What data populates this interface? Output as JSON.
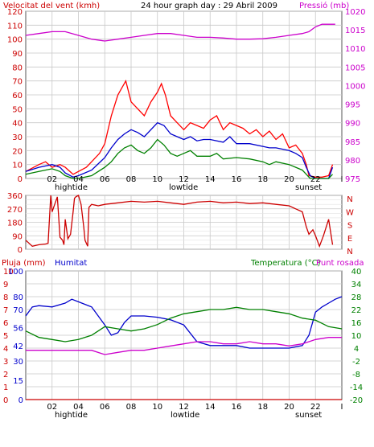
{
  "chart_data": [
    {
      "type": "line",
      "title": "24 hour graph day : 29 Abril 2009",
      "ylabel_left": "Velocitat del vent (kmh)",
      "ylabel_right": "Pressió (mb)",
      "x_ticks": [
        "02",
        "04",
        "06",
        "08",
        "10",
        "12",
        "14",
        "16",
        "18",
        "20",
        "22",
        "I"
      ],
      "x_range": [
        0,
        24
      ],
      "markers": [
        "hightide",
        "lowtide",
        "sunset"
      ],
      "y_left": {
        "range": [
          0,
          120
        ],
        "ticks": [
          "0",
          "10",
          "20",
          "30",
          "40",
          "50",
          "60",
          "70",
          "80",
          "90",
          "100",
          "110",
          "120"
        ]
      },
      "y_right": {
        "range": [
          975,
          1020
        ],
        "ticks": [
          "975",
          "980",
          "985",
          "990",
          "995",
          "1000",
          "1005",
          "1010",
          "1015",
          "1020"
        ]
      },
      "grid": true,
      "series": [
        {
          "color": "#ff0000",
          "axis": "left",
          "x": [
            0,
            1,
            1.5,
            2,
            2.6,
            3.0,
            3.6,
            4,
            4.6,
            5,
            5.6,
            6,
            6.5,
            7,
            7.3,
            7.6,
            8,
            8.5,
            9,
            9.5,
            10,
            10.3,
            10.6,
            11,
            11.5,
            12,
            12.5,
            13,
            13.5,
            14,
            14.5,
            15,
            15.5,
            16,
            16.5,
            17,
            17.5,
            18,
            18.5,
            19,
            19.5,
            20,
            20.5,
            21,
            21.3,
            21.5,
            22,
            22.5,
            23,
            23.3
          ],
          "y": [
            5,
            10,
            12,
            8,
            10,
            8,
            3,
            5,
            8,
            12,
            18,
            25,
            45,
            60,
            65,
            70,
            55,
            50,
            45,
            55,
            62,
            68,
            60,
            45,
            40,
            35,
            40,
            38,
            36,
            42,
            45,
            35,
            40,
            38,
            36,
            32,
            35,
            30,
            34,
            28,
            32,
            22,
            24,
            18,
            10,
            2,
            1,
            1,
            2,
            10
          ]
        },
        {
          "color": "#0000cc",
          "axis": "left",
          "x": [
            0,
            1,
            2,
            2.6,
            3.0,
            3.6,
            4,
            5,
            6,
            6.5,
            7,
            7.5,
            8,
            8.5,
            9,
            9.5,
            10,
            10.5,
            11,
            11.5,
            12,
            12.5,
            13,
            13.5,
            14,
            15,
            15.5,
            16,
            17,
            18,
            18.5,
            19,
            20,
            20.5,
            21,
            21.3,
            21.6,
            22,
            23,
            23.3
          ],
          "y": [
            5,
            8,
            10,
            8,
            4,
            1,
            2,
            6,
            15,
            22,
            28,
            32,
            35,
            33,
            30,
            35,
            40,
            38,
            32,
            30,
            28,
            30,
            27,
            28,
            28,
            26,
            30,
            25,
            25,
            23,
            22,
            22,
            20,
            18,
            15,
            8,
            2,
            0,
            0,
            8
          ]
        },
        {
          "color": "#008000",
          "axis": "left",
          "x": [
            0,
            1,
            2,
            2.6,
            3.0,
            3.6,
            4,
            5,
            6,
            6.5,
            7,
            7.5,
            8,
            8.5,
            9,
            9.5,
            10,
            10.5,
            11,
            11.5,
            12,
            12.5,
            13,
            14,
            14.5,
            15,
            16,
            17,
            18,
            18.5,
            19,
            20,
            20.5,
            21,
            21.3,
            21.6,
            22,
            23,
            23.3
          ],
          "y": [
            3,
            5,
            7,
            5,
            2,
            0,
            0,
            2,
            8,
            12,
            18,
            22,
            24,
            20,
            18,
            22,
            28,
            24,
            18,
            16,
            18,
            20,
            16,
            16,
            18,
            14,
            15,
            14,
            12,
            10,
            12,
            10,
            8,
            6,
            3,
            0,
            0,
            0,
            3
          ]
        },
        {
          "color": "#cc00cc",
          "axis": "right",
          "x": [
            0,
            1,
            2,
            3,
            4,
            5,
            6,
            7,
            8,
            9,
            10,
            11,
            12,
            13,
            14,
            15,
            16,
            17,
            18,
            19,
            20,
            21,
            21.5,
            22,
            22.5,
            23,
            23.5
          ],
          "y": [
            1013.5,
            1014,
            1014.5,
            1014.5,
            1013.5,
            1012.5,
            1012,
            1012.5,
            1013,
            1013.5,
            1014,
            1014,
            1013.5,
            1013,
            1013,
            1012.8,
            1012.5,
            1012.5,
            1012.6,
            1013,
            1013.5,
            1014,
            1014.5,
            1015.8,
            1016.5,
            1016.5,
            1016.5
          ]
        }
      ]
    },
    {
      "type": "line",
      "ylabel_right": "N W S E N",
      "compass": [
        "N",
        "W",
        "S",
        "E",
        "N"
      ],
      "x_range": [
        0,
        24
      ],
      "y_left": {
        "range": [
          0,
          360
        ],
        "ticks": [
          "0",
          "90",
          "180",
          "270",
          "360"
        ],
        "extra_ticks": [
          "30",
          "60",
          "120",
          "150",
          "210",
          "240",
          "300",
          "330"
        ]
      },
      "grid": true,
      "series": [
        {
          "color": "#cc0000",
          "x": [
            0,
            0.5,
            1,
            1.5,
            1.7,
            1.9,
            2.0,
            2.2,
            2.4,
            2.6,
            2.8,
            2.9,
            3.0,
            3.2,
            3.4,
            3.6,
            3.7,
            3.8,
            4.0,
            4.2,
            4.4,
            4.5,
            4.7,
            4.8,
            5,
            5.5,
            6,
            7,
            8,
            9,
            10,
            11,
            12,
            13,
            14,
            15,
            16,
            17,
            18,
            19,
            20,
            20.5,
            21,
            21.3,
            21.5,
            21.8,
            22,
            22.3,
            22.6,
            23,
            23.3
          ],
          "y": [
            60,
            20,
            30,
            35,
            40,
            360,
            250,
            300,
            350,
            80,
            60,
            30,
            200,
            70,
            100,
            250,
            340,
            350,
            360,
            300,
            150,
            60,
            20,
            280,
            300,
            290,
            300,
            310,
            320,
            315,
            320,
            310,
            300,
            315,
            320,
            310,
            315,
            305,
            310,
            300,
            290,
            270,
            250,
            150,
            100,
            130,
            90,
            20,
            90,
            200,
            30
          ]
        }
      ]
    },
    {
      "type": "line",
      "ylabel_left_1": "Pluja (mm)",
      "ylabel_left_2": "Humitat",
      "ylabel_right": "Temperatura (°C)",
      "ylabel_right_2": "Punt rosada",
      "x_ticks": [
        "02",
        "04",
        "06",
        "08",
        "10",
        "12",
        "14",
        "16",
        "18",
        "20",
        "22",
        "I"
      ],
      "x_range": [
        0,
        24
      ],
      "markers": [
        "hightide",
        "lowtide",
        "sunset"
      ],
      "y_left_rain": {
        "range": [
          0,
          10
        ],
        "ticks": [
          "0",
          "1",
          "2",
          "3",
          "4",
          "5",
          "6",
          "7",
          "8",
          "9",
          "10"
        ]
      },
      "y_left_humidity": {
        "range": [
          0,
          100
        ],
        "ticks": [
          "0",
          "15",
          "30",
          "42",
          "56",
          "70",
          "80",
          "100"
        ]
      },
      "y_right": {
        "range": [
          -20,
          40
        ],
        "ticks": [
          "-20",
          "-14",
          "-8",
          "-2",
          "4",
          "10",
          "16",
          "22",
          "28",
          "34",
          "40"
        ]
      },
      "grid": true,
      "series": [
        {
          "color": "#0000cc",
          "axis": "humidity",
          "x": [
            0,
            0.5,
            1,
            2,
            3,
            3.5,
            4,
            5,
            6,
            6.5,
            7,
            7.5,
            8,
            9,
            10,
            11,
            12,
            13,
            14,
            15,
            16,
            17,
            18,
            19,
            20,
            21,
            21.5,
            22,
            22.5,
            23,
            23.5,
            24
          ],
          "y": [
            65,
            72,
            73,
            72,
            75,
            78,
            76,
            72,
            58,
            50,
            52,
            60,
            65,
            65,
            64,
            62,
            58,
            45,
            42,
            42,
            42,
            40,
            40,
            40,
            40,
            42,
            50,
            68,
            72,
            75,
            78,
            80
          ]
        },
        {
          "color": "#008000",
          "axis": "temp",
          "x": [
            0,
            1,
            2,
            3,
            4,
            5,
            6,
            7,
            8,
            9,
            10,
            11,
            12,
            13,
            14,
            15,
            16,
            17,
            18,
            19,
            20,
            21,
            22,
            23,
            24
          ],
          "y": [
            12,
            9,
            8,
            7,
            8,
            10,
            14,
            13,
            12,
            13,
            15,
            18,
            20,
            21,
            22,
            22,
            23,
            22,
            22,
            21,
            20,
            18,
            17,
            14,
            13
          ]
        },
        {
          "color": "#cc00cc",
          "axis": "temp",
          "x": [
            0,
            1,
            2,
            3,
            4,
            5,
            6,
            7,
            8,
            9,
            10,
            11,
            12,
            13,
            14,
            15,
            16,
            17,
            18,
            19,
            20,
            21,
            22,
            23,
            24
          ],
          "y": [
            3,
            3,
            3,
            3,
            3,
            3,
            1,
            2,
            3,
            3,
            4,
            5,
            6,
            7,
            7,
            6,
            6,
            7,
            6,
            6,
            5,
            6,
            8,
            9,
            9
          ]
        },
        {
          "color": "#cc0000",
          "axis": "rain",
          "x": [
            0,
            24
          ],
          "y": [
            0,
            0
          ]
        }
      ]
    }
  ]
}
